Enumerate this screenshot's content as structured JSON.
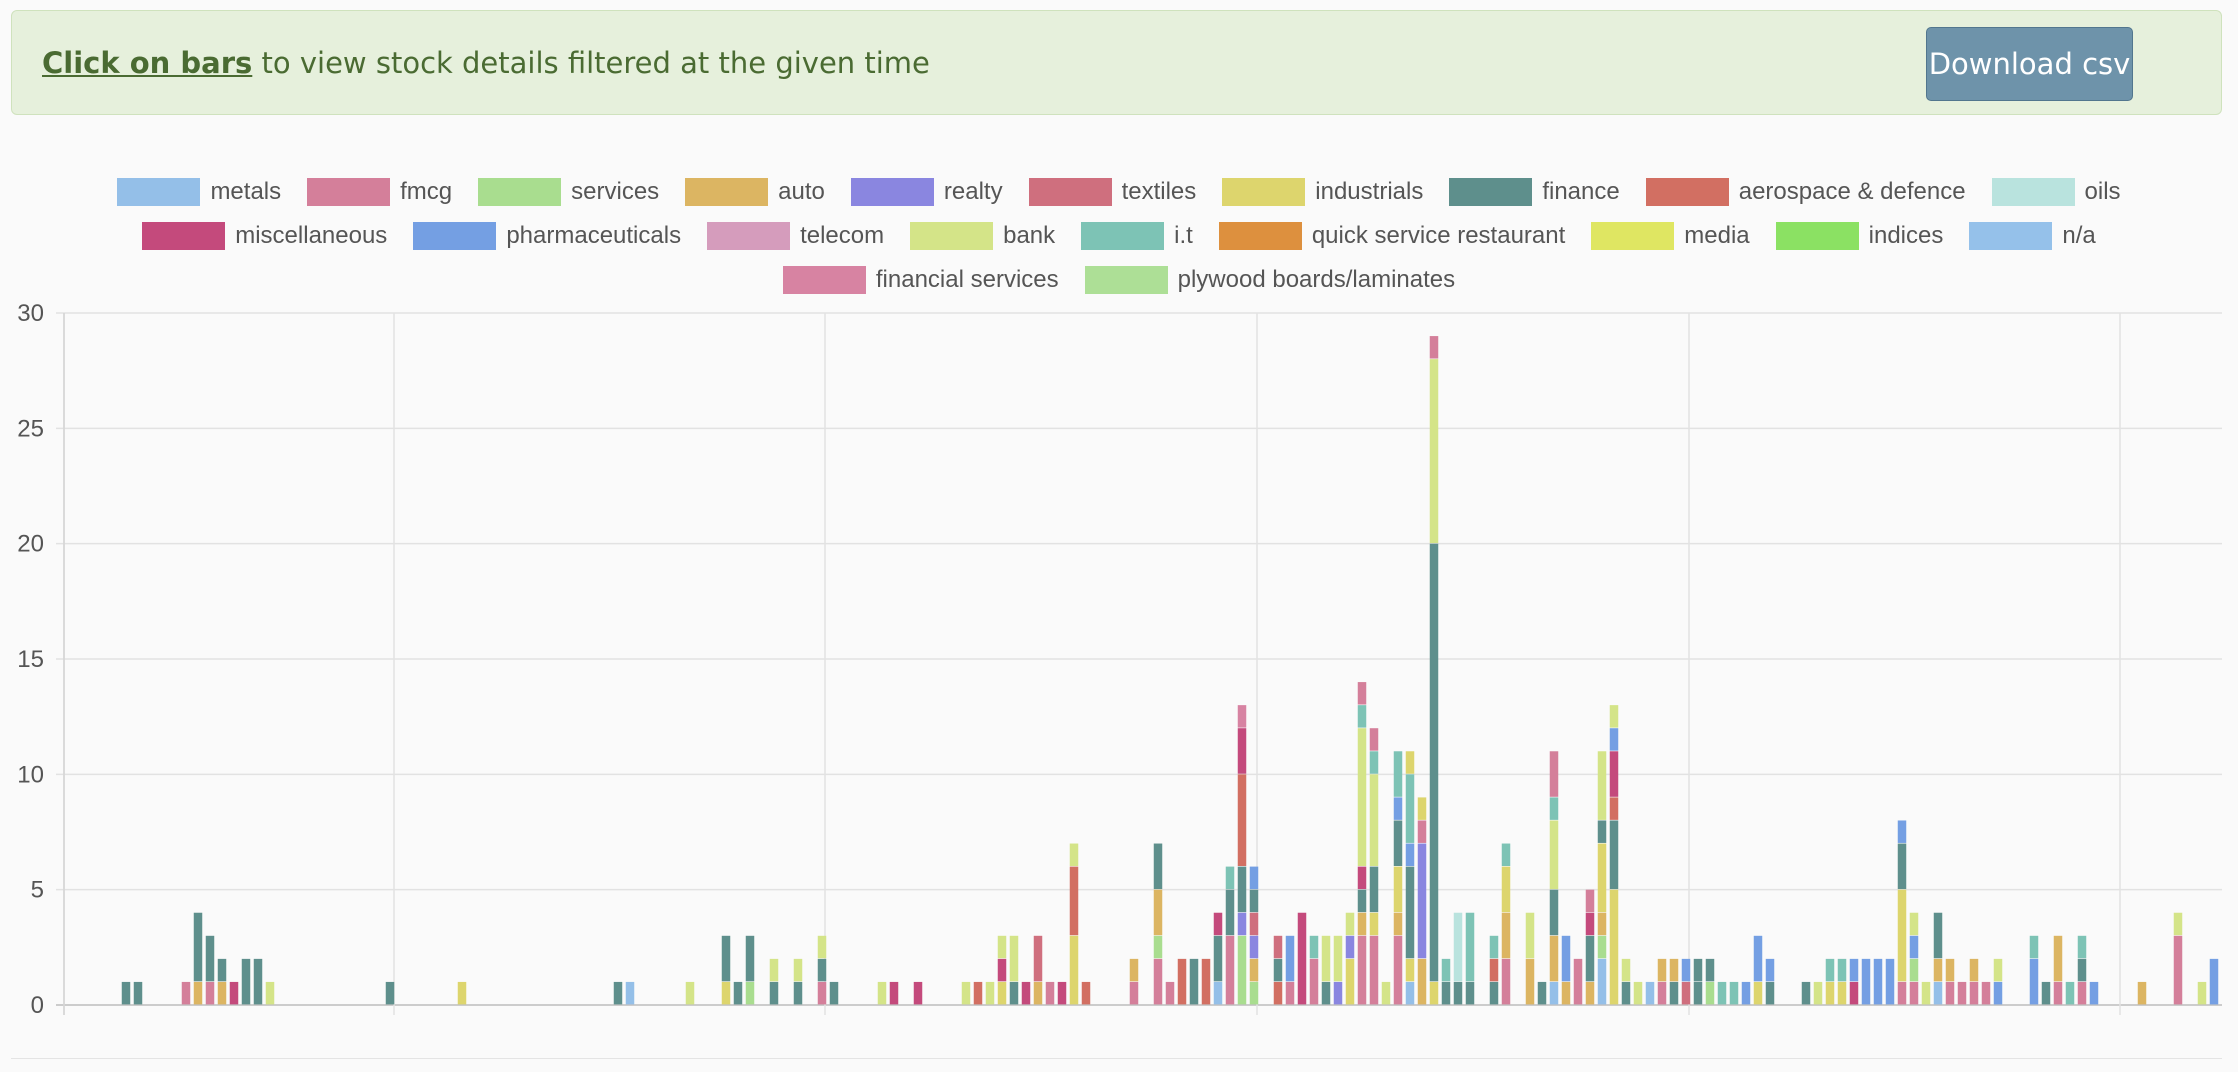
{
  "banner": {
    "link_text": "Click on bars",
    "text": " to view stock details filtered at the given time",
    "download_label": "Download csv"
  },
  "colors": {
    "metals": "#94bfe8",
    "fmcg": "#d47f9a",
    "services": "#a9dd8f",
    "auto": "#dcb562",
    "realty": "#8a86e0",
    "textiles": "#cf6f7e",
    "industrials": "#ddd56d",
    "finance": "#5e8f8c",
    "aerospace & defence": "#d26f62",
    "oils": "#b9e3de",
    "miscellaneous": "#c44a7c",
    "pharmaceuticals": "#749fe3",
    "telecom": "#d59cbc",
    "bank": "#d4e488",
    "i.t": "#7dc3b5",
    "quick service restaurant": "#dd903e",
    "media": "#dfe662",
    "indices": "#8be163",
    "n/a": "#95c1ea",
    "financial services": "#d783a2",
    "plywood boards/laminates": "#addf96"
  },
  "chart_data": {
    "type": "bar",
    "stacked": true,
    "ylim": [
      0,
      30
    ],
    "yticks": [
      "0",
      "5",
      "10",
      "15",
      "20",
      "25",
      "30"
    ],
    "grid": true,
    "legend_position": "top",
    "legend": [
      [
        "metals",
        "fmcg",
        "services",
        "auto",
        "realty",
        "textiles",
        "industrials",
        "finance",
        "aerospace & defence",
        "oils"
      ],
      [
        "miscellaneous",
        "pharmaceuticals",
        "telecom",
        "bank",
        "i.t",
        "quick service restaurant",
        "media",
        "indices",
        "n/a"
      ],
      [
        "financial services",
        "plywood boards/laminates"
      ]
    ],
    "bars": [
      [
        {
          "s": "finance",
          "v": 1
        }
      ],
      [
        {
          "s": "finance",
          "v": 1
        }
      ],
      [],
      [],
      [],
      [
        {
          "s": "fmcg",
          "v": 1
        }
      ],
      [
        {
          "s": "auto",
          "v": 1
        },
        {
          "s": "finance",
          "v": 3
        }
      ],
      [
        {
          "s": "fmcg",
          "v": 1
        },
        {
          "s": "finance",
          "v": 2
        }
      ],
      [
        {
          "s": "auto",
          "v": 1
        },
        {
          "s": "finance",
          "v": 1
        }
      ],
      [
        {
          "s": "miscellaneous",
          "v": 1
        }
      ],
      [
        {
          "s": "finance",
          "v": 2
        }
      ],
      [
        {
          "s": "finance",
          "v": 2
        }
      ],
      [
        {
          "s": "bank",
          "v": 1
        }
      ],
      [],
      [],
      [],
      [],
      [],
      [],
      [],
      [],
      [],
      [
        {
          "s": "finance",
          "v": 1
        }
      ],
      [],
      [],
      [],
      [],
      [],
      [
        {
          "s": "industrials",
          "v": 1
        }
      ],
      [],
      [],
      [],
      [],
      [],
      [],
      [],
      [],
      [],
      [],
      [],
      [],
      [
        {
          "s": "finance",
          "v": 1
        }
      ],
      [
        {
          "s": "metals",
          "v": 1
        }
      ],
      [],
      [],
      [],
      [],
      [
        {
          "s": "bank",
          "v": 1
        }
      ],
      [],
      [],
      [
        {
          "s": "industrials",
          "v": 1
        },
        {
          "s": "finance",
          "v": 2
        }
      ],
      [
        {
          "s": "finance",
          "v": 1
        }
      ],
      [
        {
          "s": "services",
          "v": 1
        },
        {
          "s": "finance",
          "v": 2
        }
      ],
      [],
      [
        {
          "s": "finance",
          "v": 1
        },
        {
          "s": "bank",
          "v": 1
        }
      ],
      [],
      [
        {
          "s": "finance",
          "v": 1
        },
        {
          "s": "bank",
          "v": 1
        }
      ],
      [],
      [
        {
          "s": "fmcg",
          "v": 1
        },
        {
          "s": "finance",
          "v": 1
        },
        {
          "s": "bank",
          "v": 1
        }
      ],
      [
        {
          "s": "finance",
          "v": 1
        }
      ],
      [],
      [],
      [],
      [
        {
          "s": "bank",
          "v": 1
        }
      ],
      [
        {
          "s": "miscellaneous",
          "v": 1
        }
      ],
      [],
      [
        {
          "s": "miscellaneous",
          "v": 1
        }
      ],
      [],
      [],
      [],
      [
        {
          "s": "bank",
          "v": 1
        }
      ],
      [
        {
          "s": "aerospace & defence",
          "v": 1
        }
      ],
      [
        {
          "s": "bank",
          "v": 1
        }
      ],
      [
        {
          "s": "industrials",
          "v": 1
        },
        {
          "s": "miscellaneous",
          "v": 1
        },
        {
          "s": "bank",
          "v": 1
        }
      ],
      [
        {
          "s": "finance",
          "v": 1
        },
        {
          "s": "bank",
          "v": 2
        }
      ],
      [
        {
          "s": "miscellaneous",
          "v": 1
        }
      ],
      [
        {
          "s": "auto",
          "v": 1
        },
        {
          "s": "textiles",
          "v": 2
        }
      ],
      [
        {
          "s": "fmcg",
          "v": 1
        }
      ],
      [
        {
          "s": "miscellaneous",
          "v": 1
        }
      ],
      [
        {
          "s": "industrials",
          "v": 3
        },
        {
          "s": "aerospace & defence",
          "v": 3
        },
        {
          "s": "bank",
          "v": 1
        }
      ],
      [
        {
          "s": "aerospace & defence",
          "v": 1
        }
      ],
      [],
      [],
      [],
      [
        {
          "s": "fmcg",
          "v": 1
        },
        {
          "s": "auto",
          "v": 1
        }
      ],
      [],
      [
        {
          "s": "fmcg",
          "v": 2
        },
        {
          "s": "services",
          "v": 1
        },
        {
          "s": "auto",
          "v": 2
        },
        {
          "s": "finance",
          "v": 2
        }
      ],
      [
        {
          "s": "fmcg",
          "v": 1
        }
      ],
      [
        {
          "s": "aerospace & defence",
          "v": 2
        }
      ],
      [
        {
          "s": "finance",
          "v": 2
        }
      ],
      [
        {
          "s": "aerospace & defence",
          "v": 2
        }
      ],
      [
        {
          "s": "metals",
          "v": 1
        },
        {
          "s": "finance",
          "v": 2
        },
        {
          "s": "miscellaneous",
          "v": 1
        }
      ],
      [
        {
          "s": "fmcg",
          "v": 3
        },
        {
          "s": "finance",
          "v": 2
        },
        {
          "s": "i.t",
          "v": 1
        }
      ],
      [
        {
          "s": "services",
          "v": 3
        },
        {
          "s": "realty",
          "v": 1
        },
        {
          "s": "finance",
          "v": 2
        },
        {
          "s": "aerospace & defence",
          "v": 4
        },
        {
          "s": "miscellaneous",
          "v": 2
        },
        {
          "s": "financial services",
          "v": 1
        }
      ],
      [
        {
          "s": "services",
          "v": 1
        },
        {
          "s": "auto",
          "v": 1
        },
        {
          "s": "realty",
          "v": 1
        },
        {
          "s": "textiles",
          "v": 1
        },
        {
          "s": "finance",
          "v": 1
        },
        {
          "s": "pharmaceuticals",
          "v": 1
        }
      ],
      [],
      [
        {
          "s": "aerospace & defence",
          "v": 1
        },
        {
          "s": "finance",
          "v": 1
        },
        {
          "s": "textiles",
          "v": 1
        }
      ],
      [
        {
          "s": "fmcg",
          "v": 1
        },
        {
          "s": "pharmaceuticals",
          "v": 2
        }
      ],
      [
        {
          "s": "miscellaneous",
          "v": 4
        }
      ],
      [
        {
          "s": "fmcg",
          "v": 2
        },
        {
          "s": "i.t",
          "v": 1
        }
      ],
      [
        {
          "s": "finance",
          "v": 1
        },
        {
          "s": "bank",
          "v": 2
        }
      ],
      [
        {
          "s": "realty",
          "v": 1
        },
        {
          "s": "bank",
          "v": 2
        }
      ],
      [
        {
          "s": "industrials",
          "v": 2
        },
        {
          "s": "realty",
          "v": 1
        },
        {
          "s": "bank",
          "v": 1
        }
      ],
      [
        {
          "s": "fmcg",
          "v": 3
        },
        {
          "s": "auto",
          "v": 1
        },
        {
          "s": "finance",
          "v": 1
        },
        {
          "s": "miscellaneous",
          "v": 1
        },
        {
          "s": "bank",
          "v": 6
        },
        {
          "s": "i.t",
          "v": 1
        },
        {
          "s": "fmcg",
          "v": 1
        }
      ],
      [
        {
          "s": "fmcg",
          "v": 3
        },
        {
          "s": "industrials",
          "v": 1
        },
        {
          "s": "finance",
          "v": 2
        },
        {
          "s": "bank",
          "v": 4
        },
        {
          "s": "i.t",
          "v": 1
        },
        {
          "s": "fmcg",
          "v": 1
        }
      ],
      [
        {
          "s": "bank",
          "v": 1
        }
      ],
      [
        {
          "s": "fmcg",
          "v": 3
        },
        {
          "s": "auto",
          "v": 1
        },
        {
          "s": "industrials",
          "v": 2
        },
        {
          "s": "finance",
          "v": 2
        },
        {
          "s": "pharmaceuticals",
          "v": 1
        },
        {
          "s": "i.t",
          "v": 2
        }
      ],
      [
        {
          "s": "metals",
          "v": 1
        },
        {
          "s": "industrials",
          "v": 1
        },
        {
          "s": "finance",
          "v": 4
        },
        {
          "s": "pharmaceuticals",
          "v": 1
        },
        {
          "s": "i.t",
          "v": 3
        },
        {
          "s": "industrials",
          "v": 1
        }
      ],
      [
        {
          "s": "auto",
          "v": 2
        },
        {
          "s": "realty",
          "v": 5
        },
        {
          "s": "fmcg",
          "v": 1
        },
        {
          "s": "industrials",
          "v": 1
        }
      ],
      [
        {
          "s": "industrials",
          "v": 1
        },
        {
          "s": "finance",
          "v": 19
        },
        {
          "s": "bank",
          "v": 8
        },
        {
          "s": "fmcg",
          "v": 1
        }
      ],
      [
        {
          "s": "finance",
          "v": 1
        },
        {
          "s": "i.t",
          "v": 1
        }
      ],
      [
        {
          "s": "finance",
          "v": 1
        },
        {
          "s": "oils",
          "v": 3
        }
      ],
      [
        {
          "s": "finance",
          "v": 1
        },
        {
          "s": "i.t",
          "v": 3
        }
      ],
      [],
      [
        {
          "s": "finance",
          "v": 1
        },
        {
          "s": "aerospace & defence",
          "v": 1
        },
        {
          "s": "i.t",
          "v": 1
        }
      ],
      [
        {
          "s": "fmcg",
          "v": 2
        },
        {
          "s": "auto",
          "v": 2
        },
        {
          "s": "industrials",
          "v": 2
        },
        {
          "s": "i.t",
          "v": 1
        }
      ],
      [],
      [
        {
          "s": "auto",
          "v": 2
        },
        {
          "s": "bank",
          "v": 2
        }
      ],
      [
        {
          "s": "finance",
          "v": 1
        }
      ],
      [
        {
          "s": "metals",
          "v": 1
        },
        {
          "s": "auto",
          "v": 2
        },
        {
          "s": "finance",
          "v": 2
        },
        {
          "s": "bank",
          "v": 3
        },
        {
          "s": "i.t",
          "v": 1
        },
        {
          "s": "fmcg",
          "v": 2
        }
      ],
      [
        {
          "s": "auto",
          "v": 1
        },
        {
          "s": "pharmaceuticals",
          "v": 2
        }
      ],
      [
        {
          "s": "fmcg",
          "v": 2
        }
      ],
      [
        {
          "s": "auto",
          "v": 1
        },
        {
          "s": "finance",
          "v": 2
        },
        {
          "s": "miscellaneous",
          "v": 1
        },
        {
          "s": "fmcg",
          "v": 1
        }
      ],
      [
        {
          "s": "metals",
          "v": 2
        },
        {
          "s": "services",
          "v": 1
        },
        {
          "s": "auto",
          "v": 1
        },
        {
          "s": "industrials",
          "v": 3
        },
        {
          "s": "finance",
          "v": 1
        },
        {
          "s": "bank",
          "v": 3
        }
      ],
      [
        {
          "s": "industrials",
          "v": 5
        },
        {
          "s": "finance",
          "v": 3
        },
        {
          "s": "aerospace & defence",
          "v": 1
        },
        {
          "s": "miscellaneous",
          "v": 2
        },
        {
          "s": "pharmaceuticals",
          "v": 1
        },
        {
          "s": "bank",
          "v": 1
        }
      ],
      [
        {
          "s": "finance",
          "v": 1
        },
        {
          "s": "bank",
          "v": 1
        }
      ],
      [
        {
          "s": "bank",
          "v": 1
        }
      ],
      [
        {
          "s": "metals",
          "v": 1
        }
      ],
      [
        {
          "s": "fmcg",
          "v": 1
        },
        {
          "s": "auto",
          "v": 1
        }
      ],
      [
        {
          "s": "finance",
          "v": 1
        },
        {
          "s": "auto",
          "v": 1
        }
      ],
      [
        {
          "s": "textiles",
          "v": 1
        },
        {
          "s": "pharmaceuticals",
          "v": 1
        }
      ],
      [
        {
          "s": "finance",
          "v": 1
        },
        {
          "s": "finance",
          "v": 1
        }
      ],
      [
        {
          "s": "services",
          "v": 1
        },
        {
          "s": "finance",
          "v": 1
        }
      ],
      [
        {
          "s": "i.t",
          "v": 1
        }
      ],
      [
        {
          "s": "i.t",
          "v": 1
        }
      ],
      [
        {
          "s": "pharmaceuticals",
          "v": 1
        }
      ],
      [
        {
          "s": "industrials",
          "v": 1
        },
        {
          "s": "pharmaceuticals",
          "v": 2
        }
      ],
      [
        {
          "s": "finance",
          "v": 1
        },
        {
          "s": "pharmaceuticals",
          "v": 1
        }
      ],
      [],
      [],
      [
        {
          "s": "finance",
          "v": 1
        }
      ],
      [
        {
          "s": "bank",
          "v": 1
        }
      ],
      [
        {
          "s": "industrials",
          "v": 1
        },
        {
          "s": "i.t",
          "v": 1
        }
      ],
      [
        {
          "s": "industrials",
          "v": 1
        },
        {
          "s": "i.t",
          "v": 1
        }
      ],
      [
        {
          "s": "miscellaneous",
          "v": 1
        },
        {
          "s": "pharmaceuticals",
          "v": 1
        }
      ],
      [
        {
          "s": "pharmaceuticals",
          "v": 2
        }
      ],
      [
        {
          "s": "pharmaceuticals",
          "v": 2
        }
      ],
      [
        {
          "s": "pharmaceuticals",
          "v": 2
        }
      ],
      [
        {
          "s": "fmcg",
          "v": 1
        },
        {
          "s": "industrials",
          "v": 4
        },
        {
          "s": "finance",
          "v": 2
        },
        {
          "s": "pharmaceuticals",
          "v": 1
        }
      ],
      [
        {
          "s": "fmcg",
          "v": 1
        },
        {
          "s": "services",
          "v": 1
        },
        {
          "s": "pharmaceuticals",
          "v": 1
        },
        {
          "s": "bank",
          "v": 1
        }
      ],
      [
        {
          "s": "bank",
          "v": 1
        }
      ],
      [
        {
          "s": "metals",
          "v": 1
        },
        {
          "s": "auto",
          "v": 1
        },
        {
          "s": "finance",
          "v": 2
        }
      ],
      [
        {
          "s": "fmcg",
          "v": 1
        },
        {
          "s": "auto",
          "v": 1
        }
      ],
      [
        {
          "s": "fmcg",
          "v": 1
        }
      ],
      [
        {
          "s": "fmcg",
          "v": 1
        },
        {
          "s": "auto",
          "v": 1
        }
      ],
      [
        {
          "s": "fmcg",
          "v": 1
        }
      ],
      [
        {
          "s": "pharmaceuticals",
          "v": 1
        },
        {
          "s": "bank",
          "v": 1
        }
      ],
      [],
      [],
      [
        {
          "s": "pharmaceuticals",
          "v": 2
        },
        {
          "s": "i.t",
          "v": 1
        }
      ],
      [
        {
          "s": "finance",
          "v": 1
        }
      ],
      [
        {
          "s": "fmcg",
          "v": 1
        },
        {
          "s": "auto",
          "v": 2
        }
      ],
      [
        {
          "s": "i.t",
          "v": 1
        }
      ],
      [
        {
          "s": "fmcg",
          "v": 1
        },
        {
          "s": "finance",
          "v": 1
        },
        {
          "s": "i.t",
          "v": 1
        }
      ],
      [
        {
          "s": "pharmaceuticals",
          "v": 1
        }
      ],
      [],
      [],
      [],
      [
        {
          "s": "auto",
          "v": 1
        }
      ],
      [],
      [],
      [
        {
          "s": "fmcg",
          "v": 3
        },
        {
          "s": "bank",
          "v": 1
        }
      ],
      [],
      [
        {
          "s": "bank",
          "v": 1
        }
      ],
      [
        {
          "s": "pharmaceuticals",
          "v": 2
        }
      ]
    ]
  }
}
